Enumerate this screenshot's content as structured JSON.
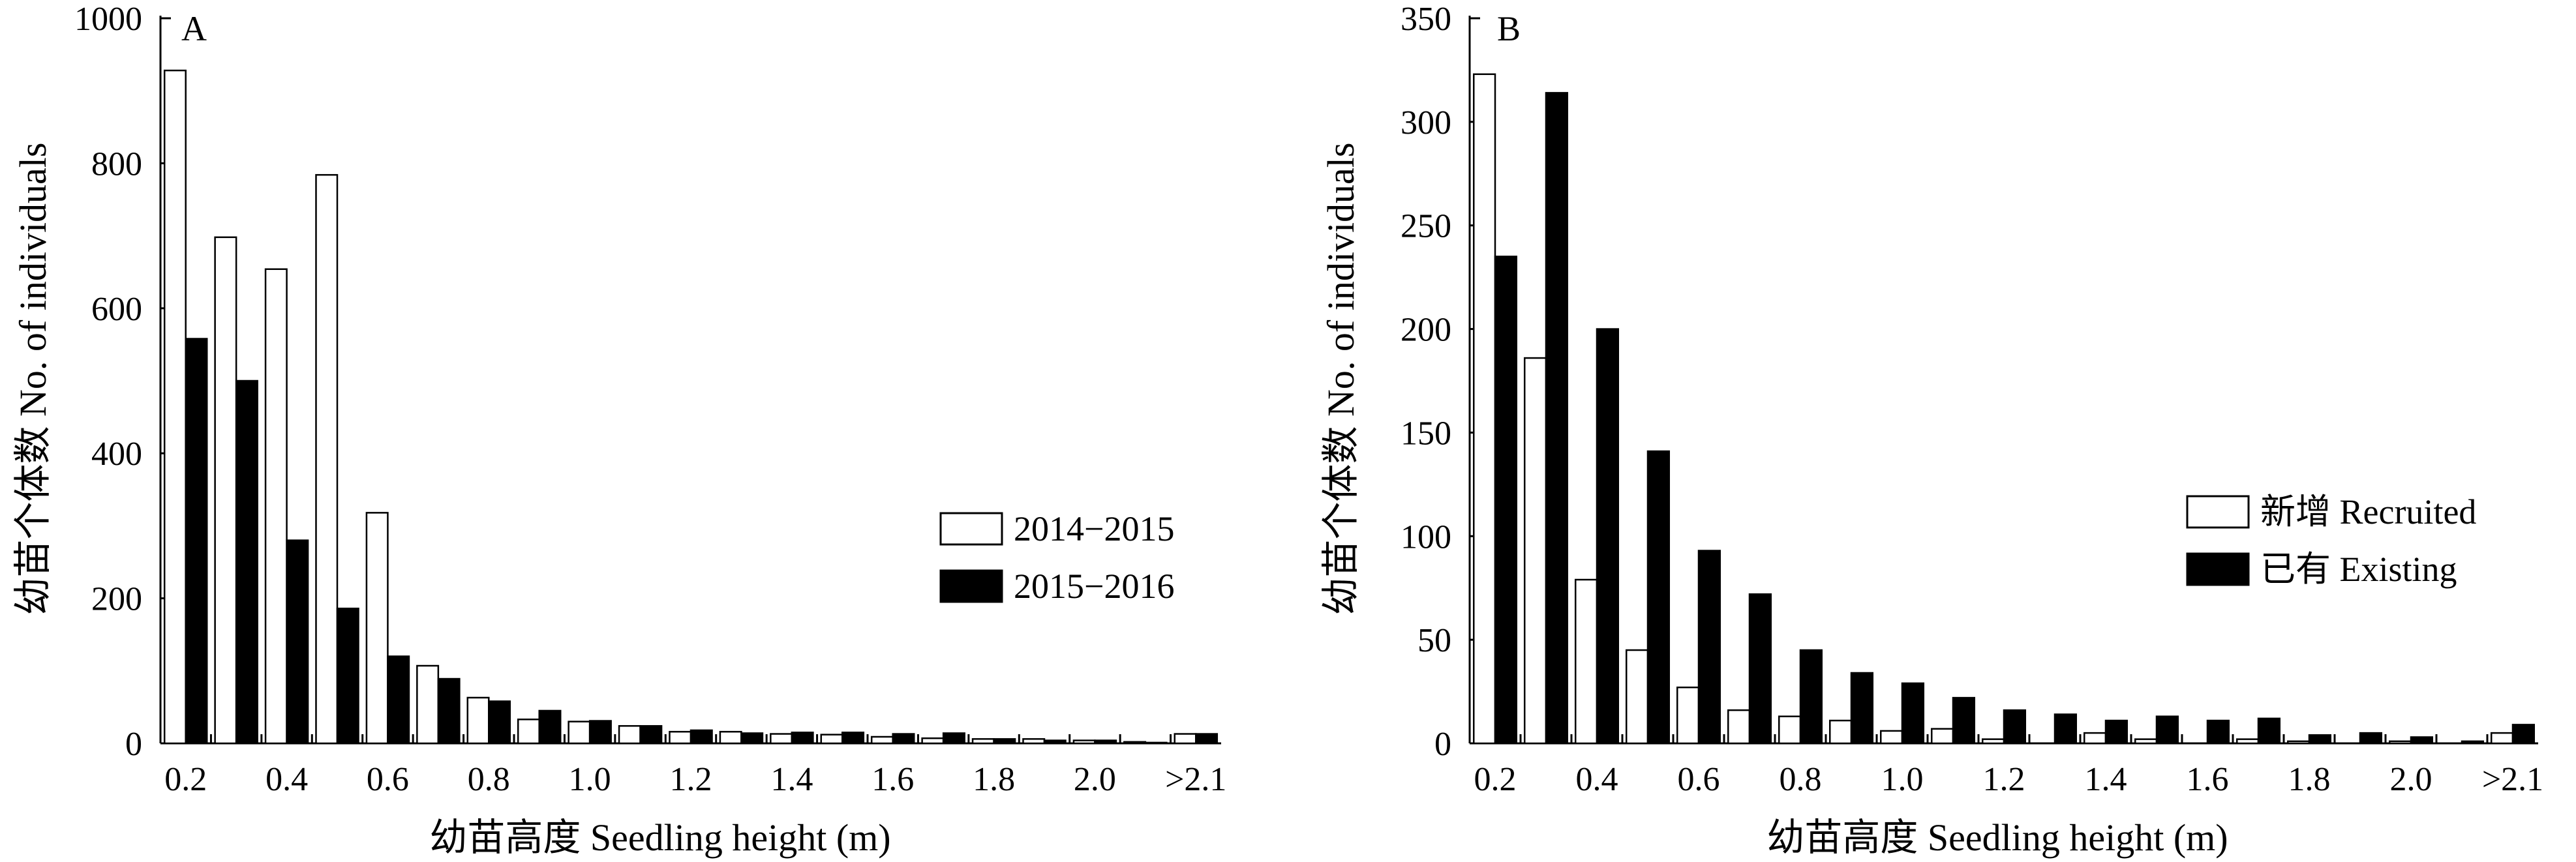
{
  "chart_data": [
    {
      "panel": "A",
      "type": "bar",
      "ylabel": "幼苗个体数 No. of individuals",
      "xlabel": "幼苗高度 Seedling height (m)",
      "ylim": [
        0,
        1000
      ],
      "yticks": [
        0,
        200,
        400,
        600,
        800,
        1000
      ],
      "xtick_labels": [
        "0.2",
        "0.4",
        "0.6",
        "0.8",
        "1.0",
        "1.2",
        "1.4",
        "1.6",
        "1.8",
        "2.0",
        ">2.1"
      ],
      "legend_position": "right",
      "series": [
        {
          "name": "2014−2015",
          "fill": "#ffffff",
          "values": [
            928,
            698,
            654,
            784,
            318,
            107,
            63,
            33,
            30,
            24,
            16,
            16,
            13,
            12,
            9,
            7,
            6,
            6,
            4,
            2,
            13
          ]
        },
        {
          "name": "2015−2016",
          "fill": "#000000",
          "values": [
            558,
            500,
            280,
            186,
            120,
            89,
            58,
            45,
            31,
            24,
            18,
            14,
            15,
            15,
            13,
            14,
            6,
            4,
            4,
            1,
            13
          ]
        }
      ]
    },
    {
      "panel": "B",
      "type": "bar",
      "ylabel": "幼苗个体数 No. of individuals",
      "xlabel": "幼苗高度 Seedling height (m)",
      "ylim": [
        0,
        350
      ],
      "yticks": [
        0,
        50,
        100,
        150,
        200,
        250,
        300,
        350
      ],
      "xtick_labels": [
        "0.2",
        "0.4",
        "0.6",
        "0.8",
        "1.0",
        "1.2",
        "1.4",
        "1.6",
        "1.8",
        "2.0",
        ">2.1"
      ],
      "legend_position": "right",
      "series": [
        {
          "name": "新增 Recruited",
          "fill": "#ffffff",
          "values": [
            323,
            186,
            79,
            45,
            27,
            16,
            13,
            11,
            6,
            7,
            2,
            0,
            5,
            2,
            0,
            2,
            1,
            0,
            1,
            0,
            5
          ]
        },
        {
          "name": "已有 Existing",
          "fill": "#000000",
          "values": [
            235,
            314,
            200,
            141,
            93,
            72,
            45,
            34,
            29,
            22,
            16,
            14,
            11,
            13,
            11,
            12,
            4,
            5,
            3,
            1,
            9
          ]
        }
      ]
    }
  ]
}
